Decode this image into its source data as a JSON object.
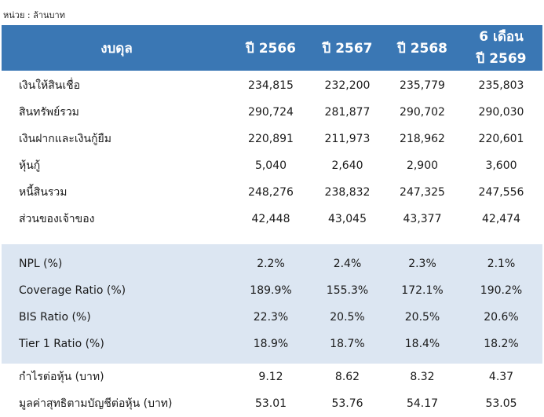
{
  "unit_note": "หน่วย : ล้านบาท",
  "header": {
    "label": "งบดุล",
    "years": [
      "ปี 2566",
      "ปี 2567",
      "ปี 2568"
    ],
    "last_line1": "6 เดือน",
    "last_line2": "ปี 2569"
  },
  "balance_rows": [
    {
      "name": "เงินให้สินเชื่อ",
      "values": [
        "234,815",
        "232,200",
        "235,779",
        "235,803"
      ]
    },
    {
      "name": "สินทรัพย์รวม",
      "values": [
        "290,724",
        "281,877",
        "290,702",
        "290,030"
      ]
    },
    {
      "name": "เงินฝากและเงินกู้ยืม",
      "values": [
        "220,891",
        "211,973",
        "218,962",
        "220,601"
      ]
    },
    {
      "name": "หุ้นกู้",
      "values": [
        "5,040",
        "2,640",
        "2,900",
        "3,600"
      ]
    },
    {
      "name": "หนี้สินรวม",
      "values": [
        "248,276",
        "238,832",
        "247,325",
        "247,556"
      ]
    },
    {
      "name": "ส่วนของเจ้าของ",
      "values": [
        "42,448",
        "43,045",
        "43,377",
        "42,474"
      ]
    }
  ],
  "ratio_rows": [
    {
      "name": "NPL (%)",
      "values": [
        "2.2%",
        "2.4%",
        "2.3%",
        "2.1%"
      ]
    },
    {
      "name": "Coverage Ratio (%)",
      "values": [
        "189.9%",
        "155.3%",
        "172.1%",
        "190.2%"
      ]
    },
    {
      "name": "BIS Ratio (%)",
      "values": [
        "22.3%",
        "20.5%",
        "20.5%",
        "20.6%"
      ]
    },
    {
      "name": "Tier 1 Ratio (%)",
      "values": [
        "18.9%",
        "18.7%",
        "18.4%",
        "18.2%"
      ]
    }
  ],
  "per_share_rows": [
    {
      "name": "กำไรต่อหุ้น (บาท)",
      "values": [
        "9.12",
        "8.62",
        "8.32",
        "4.37"
      ]
    },
    {
      "name": "มูลค่าสุทธิตามบัญชีต่อหุ้น (บาท)",
      "values": [
        "53.01",
        "53.76",
        "54.17",
        "53.05"
      ]
    }
  ],
  "colors": {
    "header_bg": "#3a77b4",
    "shade_bg": "#dce6f2"
  }
}
